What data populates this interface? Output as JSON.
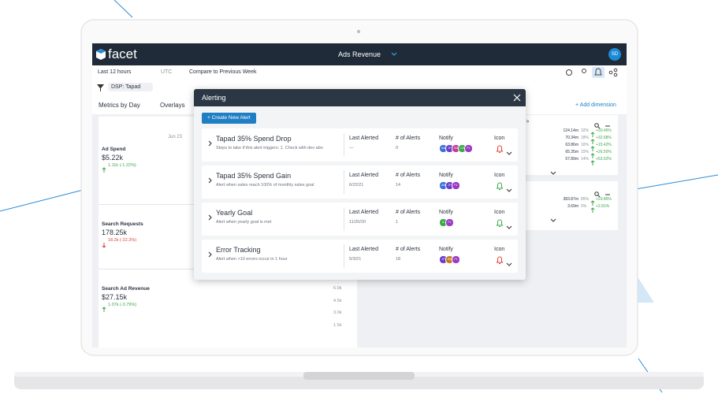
{
  "app": {
    "logo": "facet",
    "report": "Ads Revenue",
    "avatar": "SD"
  },
  "toolbar": {
    "time_range": "Last 12 hours",
    "timezone": "UTC",
    "compare": "Compare to Previous Week"
  },
  "filter": "DSP: Tapad",
  "controls": {
    "metrics_by": "Metrics by Day",
    "overlays": "Overlays",
    "add_dimension": "+ Add dimension"
  },
  "metrics": [
    {
      "name": "Ad Spend",
      "value": "$5.22k",
      "change": "1.11k (-1.22%)",
      "trend": "up"
    },
    {
      "name": "Search Requests",
      "value": "178.25k",
      "change": "18.2k (-22.3%)",
      "trend": "down"
    },
    {
      "name": "Search Ad Revenue",
      "value": "$27.15k",
      "change": "1.07k (-3.79%)",
      "trend": "up"
    }
  ],
  "chart": {
    "date": "Jun 23",
    "axis": [
      "6.0k",
      "4.5k",
      "3.0k",
      "1.5k"
    ]
  },
  "breakdowns": [
    {
      "title": "Manager >",
      "rows": [
        [
          "124.14m",
          "32%",
          "+30.45%"
        ],
        [
          "70.34m",
          "18%",
          "+32.68%"
        ],
        [
          "63.86m",
          "16%",
          "+15.42%"
        ],
        [
          "65.35m",
          "15%",
          "+26.50%"
        ],
        [
          "57.89m",
          "14%",
          "+53.52%"
        ]
      ]
    },
    {
      "rows": [
        [
          "383.87m",
          "85%",
          "+29.86%"
        ],
        [
          "3.69m",
          "0%",
          "+2.81%"
        ]
      ]
    }
  ],
  "modal": {
    "title": "Alerting",
    "new_alert": "+  Create New Alert",
    "columns": {
      "last": "Last Alerted",
      "count": "# of Alerts",
      "notify": "Notify",
      "icon": "Icon"
    },
    "alerts": [
      {
        "name": "Tapad 35% Spend Drop",
        "description": "Steps to take if this alert triggers: 1. Check with dev abo",
        "last_alerted": "—",
        "count": "0",
        "icon_color": "#e0403a",
        "notify": [
          {
            "initials": "AM",
            "color": "#3a6fd8"
          },
          {
            "initials": "JP",
            "color": "#6a3fc8"
          },
          {
            "initials": "KM",
            "color": "#c43a9a"
          },
          {
            "initials": "CS",
            "color": "#3aa84a"
          },
          {
            "initials": "PL",
            "color": "#9a3ac4"
          }
        ]
      },
      {
        "name": "Tapad 35% Spend Gain",
        "description": "Alert when sales reach 100% of monthly sales goal",
        "last_alerted": "6/22/21",
        "count": "14",
        "icon_color": "#3aa84a",
        "notify": [
          {
            "initials": "AM",
            "color": "#3a6fd8"
          },
          {
            "initials": "JP",
            "color": "#6a3fc8"
          },
          {
            "initials": "PL",
            "color": "#9a3ac4"
          }
        ]
      },
      {
        "name": "Yearly Goal",
        "description": "Alert when yearly goal is met",
        "last_alerted": "11/20/20",
        "count": "1",
        "icon_color": "#3aa84a",
        "notify": [
          {
            "initials": "JL",
            "color": "#3aa84a"
          },
          {
            "initials": "PL",
            "color": "#9a3ac4"
          }
        ]
      },
      {
        "name": "Error Tracking",
        "description": "Alert when >10 errors occur in 1 hour",
        "last_alerted": "5/3/21",
        "count": "18",
        "icon_color": "#e0403a",
        "notify": [
          {
            "initials": "JP",
            "color": "#6a3fc8"
          },
          {
            "initials": "KM",
            "color": "#c97a1a"
          },
          {
            "initials": "PL",
            "color": "#9a3ac4"
          }
        ]
      }
    ]
  }
}
